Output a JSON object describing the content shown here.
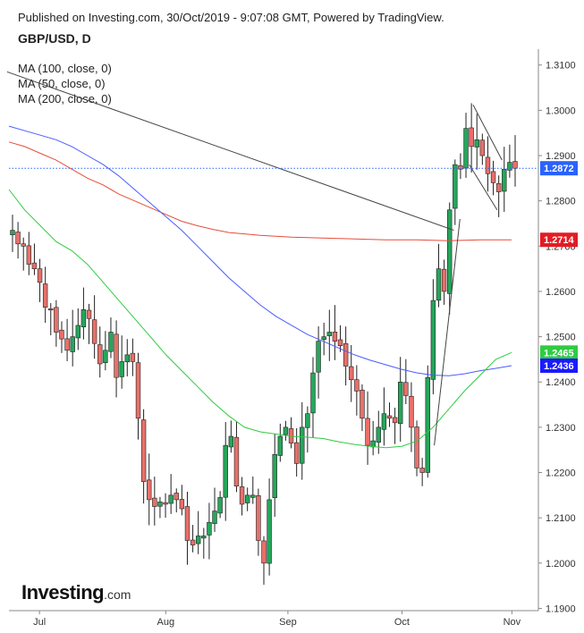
{
  "header": {
    "published": "Published on Investing.com, 30/Oct/2019 - 9:07:08 GMT, Powered by TradingView."
  },
  "logo": {
    "name": "Investing",
    "suffix": ".com"
  },
  "chart_data": {
    "type": "candlestick",
    "title": "GBP/USD, D",
    "legend": [
      "MA (100, close, 0)",
      "MA (50, close, 0)",
      "MA (200, close, 0)"
    ],
    "y_ticks": [
      "1.3100",
      "1.3000",
      "1.2900",
      "1.2800",
      "1.2700",
      "1.2600",
      "1.2500",
      "1.2400",
      "1.2300",
      "1.2200",
      "1.2100",
      "1.2000",
      "1.1900"
    ],
    "ylim": [
      1.1895,
      1.3135
    ],
    "x_ticks": [
      "Jul",
      "Aug",
      "Sep",
      "Oct",
      "Nov"
    ],
    "x_tick_index": [
      7,
      38,
      68,
      96,
      123
    ],
    "n_bars": 130,
    "colors": {
      "up": "#26a65b",
      "down": "#e8706a",
      "ma100": "#4a5cff",
      "ma50": "#2ecc40",
      "ma200": "#e74c3c",
      "trend": "#444444",
      "price": "#2962ff"
    },
    "last_price": {
      "value": 1.2872,
      "label": "1.2872",
      "color": "#2962ff"
    },
    "ma_labels": [
      {
        "name": "MA 200",
        "value": 1.2714,
        "label": "1.2714",
        "color": "#e31b23"
      },
      {
        "name": "MA 50",
        "value": 1.2465,
        "label": "1.2465",
        "color": "#2ecc40"
      },
      {
        "name": "MA 100",
        "value": 1.2436,
        "label": "1.2436",
        "color": "#1a1aff"
      }
    ],
    "closes": [
      1.2735,
      1.2705,
      1.27,
      1.266,
      1.265,
      1.262,
      1.2565,
      1.256,
      1.251,
      1.2495,
      1.247,
      1.25,
      1.2525,
      1.256,
      1.254,
      1.2485,
      1.244,
      1.247,
      1.251,
      1.241,
      1.2445,
      1.246,
      1.2445,
      1.232,
      1.218,
      1.214,
      1.2125,
      1.2135,
      1.213,
      1.215,
      1.214,
      1.212,
      1.205,
      1.204,
      1.206,
      1.206,
      1.209,
      1.2115,
      1.2145,
      1.226,
      1.228,
      1.217,
      1.213,
      1.215,
      1.215,
      1.205,
      1.2,
      1.214,
      1.224,
      1.228,
      1.23,
      1.2265,
      1.222,
      1.23,
      1.233,
      1.242,
      1.249,
      1.25,
      1.251,
      1.249,
      1.248,
      1.2435,
      1.2405,
      1.238,
      1.232,
      1.226,
      1.227,
      1.23,
      1.233,
      1.232,
      1.231,
      1.24,
      1.237,
      1.23,
      1.221,
      1.22,
      1.241,
      1.258,
      1.265,
      1.26,
      1.278,
      1.288,
      1.287,
      1.296,
      1.292,
      1.2935,
      1.29,
      1.286,
      1.284,
      1.282,
      1.287,
      1.2885,
      1.2872
    ],
    "ma100": [
      1.2965,
      1.2955,
      1.2945,
      1.2935,
      1.292,
      1.29,
      1.288,
      1.2855,
      1.2825,
      1.2795,
      1.2765,
      1.2735,
      1.27,
      1.2665,
      1.263,
      1.26,
      1.257,
      1.2545,
      1.2525,
      1.2505,
      1.249,
      1.2475,
      1.246,
      1.2448,
      1.2438,
      1.2428,
      1.242,
      1.2415,
      1.2414,
      1.2418,
      1.2425,
      1.243,
      1.2436
    ],
    "ma50": [
      1.2825,
      1.278,
      1.2745,
      1.271,
      1.269,
      1.266,
      1.262,
      1.258,
      1.254,
      1.25,
      1.246,
      1.2425,
      1.239,
      1.2355,
      1.2325,
      1.23,
      1.229,
      1.2285,
      1.228,
      1.2278,
      1.2275,
      1.2268,
      1.2262,
      1.2258,
      1.2255,
      1.2258,
      1.227,
      1.23,
      1.234,
      1.238,
      1.2415,
      1.245,
      1.2465
    ],
    "ma200": [
      1.293,
      1.292,
      1.2905,
      1.289,
      1.287,
      1.285,
      1.2835,
      1.2815,
      1.28,
      1.2785,
      1.277,
      1.2755,
      1.2745,
      1.2737,
      1.273,
      1.2727,
      1.2724,
      1.2722,
      1.272,
      1.2719,
      1.2718,
      1.2717,
      1.2716,
      1.2715,
      1.2714,
      1.2714,
      1.2714,
      1.2713,
      1.2712,
      1.2713,
      1.2714,
      1.2714,
      1.2714
    ]
  }
}
